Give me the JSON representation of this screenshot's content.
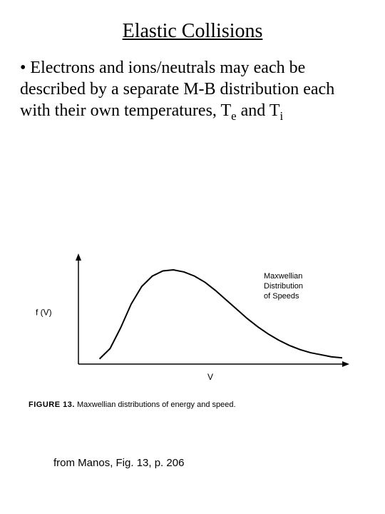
{
  "title": "Elastic Collisions",
  "bullet_text": "• Electrons and ions/neutrals may each be described by a separate M-B distribution each with their own temperatures, T",
  "sub_e": "e",
  "mid_text": " and T",
  "sub_i": "i",
  "figure": {
    "type": "line",
    "ylabel": "f (V)",
    "xlabel": "V",
    "legend": [
      "Maxwellian",
      "Distribution",
      "of Speeds"
    ],
    "caption_label": "FIGURE 13.",
    "caption_text": "Maxwellian distributions of energy and speed.",
    "background_color": "#ffffff",
    "axis_color": "#000000",
    "curve_color": "#000000",
    "line_width": 2,
    "label_fontsize": 12,
    "legend_fontsize": 11,
    "xlim": [
      0,
      100
    ],
    "ylim": [
      0,
      100
    ],
    "curve_points": [
      [
        8,
        5
      ],
      [
        12,
        15
      ],
      [
        16,
        35
      ],
      [
        20,
        58
      ],
      [
        24,
        75
      ],
      [
        28,
        85
      ],
      [
        32,
        90
      ],
      [
        36,
        91
      ],
      [
        40,
        89
      ],
      [
        44,
        85
      ],
      [
        48,
        79
      ],
      [
        52,
        71
      ],
      [
        56,
        62
      ],
      [
        60,
        53
      ],
      [
        64,
        44
      ],
      [
        68,
        36
      ],
      [
        72,
        29
      ],
      [
        76,
        23
      ],
      [
        80,
        18
      ],
      [
        84,
        14
      ],
      [
        88,
        11
      ],
      [
        92,
        9
      ],
      [
        96,
        7
      ],
      [
        100,
        6
      ]
    ]
  },
  "source": "from Manos, Fig. 13, p. 206"
}
